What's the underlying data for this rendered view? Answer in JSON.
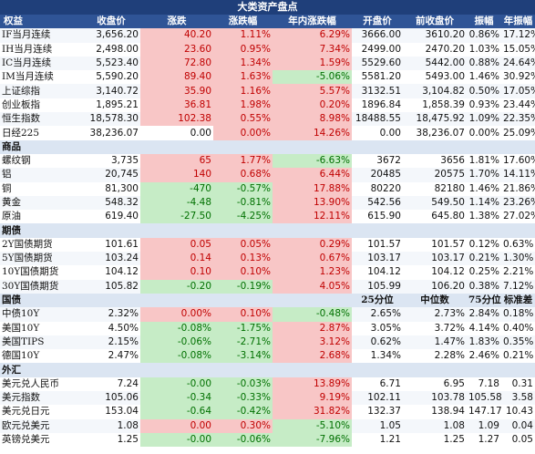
{
  "title": "大类资产盘点",
  "columns": [
    "权益",
    "收盘价",
    "涨跌",
    "涨跌幅",
    "年内涨跌幅",
    "开盘价",
    "前收盘价",
    "振幅",
    "年振幅"
  ],
  "sections": [
    {
      "name": "权益",
      "is_header": true,
      "rows": [
        {
          "name": "IF当月连续",
          "v": [
            "3,656.20",
            "40.20",
            "1.11%",
            "6.29%",
            "3666.00",
            "3610.20",
            "0.86%",
            "17.12%"
          ],
          "d": [
            "up",
            "up",
            "up"
          ]
        },
        {
          "name": "IH当月连续",
          "v": [
            "2,498.00",
            "23.60",
            "0.95%",
            "7.34%",
            "2499.00",
            "2470.20",
            "1.03%",
            "15.05%"
          ],
          "d": [
            "up",
            "up",
            "up"
          ]
        },
        {
          "name": "IC当月连续",
          "v": [
            "5,523.40",
            "72.80",
            "1.34%",
            "1.59%",
            "5529.60",
            "5442.00",
            "0.88%",
            "24.64%"
          ],
          "d": [
            "up",
            "up",
            "up"
          ]
        },
        {
          "name": "IM当月连续",
          "v": [
            "5,590.20",
            "89.40",
            "1.63%",
            "-5.06%",
            "5581.20",
            "5493.00",
            "1.46%",
            "30.92%"
          ],
          "d": [
            "up",
            "up",
            "down"
          ]
        },
        {
          "name": "上证综指",
          "v": [
            "3,140.72",
            "35.90",
            "1.16%",
            "5.57%",
            "3132.51",
            "3,104.82",
            "0.50%",
            "17.05%"
          ],
          "d": [
            "up",
            "up",
            "up"
          ]
        },
        {
          "name": "创业板指",
          "v": [
            "1,895.21",
            "36.81",
            "1.98%",
            "0.20%",
            "1896.84",
            "1,858.39",
            "0.93%",
            "23.44%"
          ],
          "d": [
            "up",
            "up",
            "up"
          ]
        },
        {
          "name": "恒生指数",
          "v": [
            "18,578.30",
            "102.38",
            "0.55%",
            "8.98%",
            "18488.55",
            "18,475.92",
            "1.09%",
            "22.35%"
          ],
          "d": [
            "up",
            "up",
            "up"
          ]
        },
        {
          "name": "日经225",
          "v": [
            "38,236.07",
            "0.00",
            "0.00%",
            "14.26%",
            "0.00",
            "38,236.07",
            "0.00%",
            "25.09%"
          ],
          "d": [
            "none",
            "flat",
            "up"
          ]
        }
      ]
    },
    {
      "name": "商品",
      "rows": [
        {
          "name": "螺纹钢",
          "v": [
            "3,735",
            "65",
            "1.77%",
            "-6.63%",
            "3672",
            "3656",
            "1.81%",
            "17.60%"
          ],
          "d": [
            "up",
            "up",
            "down"
          ]
        },
        {
          "name": "铝",
          "v": [
            "20,745",
            "140",
            "0.68%",
            "6.44%",
            "20485",
            "20575",
            "1.70%",
            "14.11%"
          ],
          "d": [
            "up",
            "up",
            "up"
          ]
        },
        {
          "name": "铜",
          "v": [
            "81,300",
            "-470",
            "-0.57%",
            "17.88%",
            "80220",
            "82180",
            "1.46%",
            "21.86%"
          ],
          "d": [
            "down",
            "down",
            "up"
          ]
        },
        {
          "name": "黄金",
          "v": [
            "548.32",
            "-4.48",
            "-0.81%",
            "13.90%",
            "542.56",
            "549.50",
            "1.14%",
            "23.26%"
          ],
          "d": [
            "down",
            "down",
            "up"
          ]
        },
        {
          "name": "原油",
          "v": [
            "619.40",
            "-27.50",
            "-4.25%",
            "12.11%",
            "615.90",
            "645.80",
            "1.38%",
            "27.02%"
          ],
          "d": [
            "down",
            "down",
            "up"
          ]
        }
      ]
    },
    {
      "name": "期债",
      "rows": [
        {
          "name": "2Y国债期货",
          "v": [
            "101.61",
            "0.05",
            "0.05%",
            "0.29%",
            "101.57",
            "101.57",
            "0.12%",
            "0.63%"
          ],
          "d": [
            "up",
            "up",
            "up"
          ]
        },
        {
          "name": "5Y国债期货",
          "v": [
            "103.24",
            "0.14",
            "0.13%",
            "0.67%",
            "103.17",
            "103.17",
            "0.21%",
            "1.30%"
          ],
          "d": [
            "up",
            "up",
            "up"
          ]
        },
        {
          "name": "10Y国债期货",
          "v": [
            "104.12",
            "0.10",
            "0.10%",
            "1.23%",
            "104.12",
            "104.12",
            "0.25%",
            "2.21%"
          ],
          "d": [
            "up",
            "up",
            "up"
          ]
        },
        {
          "name": "30Y国债期货",
          "v": [
            "105.82",
            "-0.20",
            "-0.19%",
            "4.05%",
            "105.99",
            "106.20",
            "0.38%",
            "7.12%"
          ],
          "d": [
            "down",
            "down",
            "up"
          ]
        }
      ]
    },
    {
      "name": "国债",
      "subheaders": [
        "25分位",
        "中位数",
        "75分位数",
        "标准差"
      ],
      "rows": [
        {
          "name": "中债10Y",
          "v": [
            "2.32%",
            "0.00%",
            "0.10%",
            "-0.48%",
            "2.65%",
            "2.73%",
            "2.84%",
            "0.18%"
          ],
          "d": [
            "flat",
            "up",
            "down"
          ]
        },
        {
          "name": "美国10Y",
          "v": [
            "4.50%",
            "-0.08%",
            "-1.75%",
            "2.87%",
            "3.05%",
            "3.72%",
            "4.14%",
            "0.40%"
          ],
          "d": [
            "down",
            "down",
            "up"
          ]
        },
        {
          "name": "美国TIPS",
          "v": [
            "2.15%",
            "-0.06%",
            "-2.71%",
            "3.12%",
            "0.62%",
            "1.47%",
            "1.83%",
            "0.35%"
          ],
          "d": [
            "down",
            "down",
            "up"
          ]
        },
        {
          "name": "德国10Y",
          "v": [
            "2.47%",
            "-0.08%",
            "-3.14%",
            "2.68%",
            "1.34%",
            "2.28%",
            "2.46%",
            "0.21%"
          ],
          "d": [
            "down",
            "down",
            "up"
          ]
        }
      ]
    },
    {
      "name": "外汇",
      "rows": [
        {
          "name": "美元兑人民币",
          "v": [
            "7.24",
            "-0.00",
            "-0.03%",
            "13.89%",
            "6.71",
            "6.95",
            "7.18",
            "0.31"
          ],
          "d": [
            "down",
            "down",
            "up"
          ]
        },
        {
          "name": "美元指数",
          "v": [
            "105.06",
            "-0.34",
            "-0.33%",
            "9.19%",
            "102.11",
            "103.78",
            "105.58",
            "3.58"
          ],
          "d": [
            "down",
            "down",
            "up"
          ]
        },
        {
          "name": "美元兑日元",
          "v": [
            "153.04",
            "-0.64",
            "-0.42%",
            "31.82%",
            "132.37",
            "138.94",
            "147.17",
            "10.43"
          ],
          "d": [
            "down",
            "down",
            "up"
          ]
        },
        {
          "name": "欧元兑美元",
          "v": [
            "1.08",
            "0.00",
            "0.30%",
            "-5.10%",
            "1.05",
            "1.08",
            "1.09",
            "0.04"
          ],
          "d": [
            "up",
            "up",
            "down"
          ]
        },
        {
          "name": "英镑兑美元",
          "v": [
            "1.25",
            "-0.00",
            "-0.06%",
            "-7.96%",
            "1.21",
            "1.25",
            "1.27",
            "0.05"
          ],
          "d": [
            "down",
            "down",
            "down"
          ]
        }
      ]
    }
  ],
  "colors": {
    "up_bg": "#f8c6c6",
    "down_bg": "#c6ecc6",
    "header_bg": "#2f5496"
  }
}
